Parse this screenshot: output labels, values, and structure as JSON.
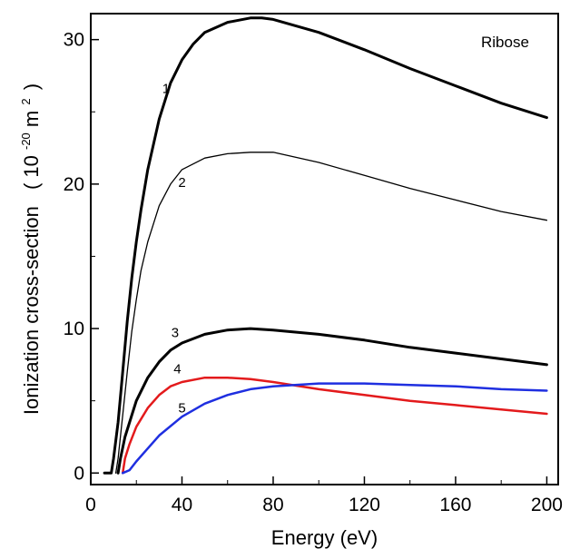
{
  "chart_data": {
    "type": "line",
    "title": "",
    "annotation": "Ribose",
    "xlabel": "Energy (eV)",
    "ylabel": "Ionization cross-section",
    "ylabel_unit_prefix": "( 10",
    "ylabel_unit_exp": "-20",
    "ylabel_unit_base": " m",
    "ylabel_unit_sup": "2",
    "ylabel_unit_suffix": ")",
    "xlim": [
      0,
      205
    ],
    "ylim": [
      -0.8,
      31.8
    ],
    "xticks": [
      0,
      40,
      80,
      120,
      160,
      200
    ],
    "yticks": [
      0,
      10,
      20,
      30
    ],
    "xtick_labels": [
      "0",
      "40",
      "80",
      "120",
      "160",
      "200"
    ],
    "ytick_labels": [
      "0",
      "10",
      "20",
      "30"
    ],
    "grid": false,
    "series": [
      {
        "name": "1",
        "color": "#000000",
        "width": 3,
        "label_pos": [
          33,
          26.3
        ],
        "points": [
          [
            6,
            0
          ],
          [
            9,
            0
          ],
          [
            10,
            1
          ],
          [
            12,
            3.5
          ],
          [
            14,
            7
          ],
          [
            16,
            10.5
          ],
          [
            18,
            13.5
          ],
          [
            20,
            16
          ],
          [
            22,
            18.2
          ],
          [
            25,
            21
          ],
          [
            30,
            24.5
          ],
          [
            35,
            27
          ],
          [
            40,
            28.6
          ],
          [
            45,
            29.7
          ],
          [
            50,
            30.5
          ],
          [
            60,
            31.2
          ],
          [
            70,
            31.5
          ],
          [
            75,
            31.5
          ],
          [
            80,
            31.4
          ],
          [
            100,
            30.5
          ],
          [
            120,
            29.3
          ],
          [
            140,
            28
          ],
          [
            160,
            26.8
          ],
          [
            180,
            25.6
          ],
          [
            200,
            24.6
          ]
        ]
      },
      {
        "name": "2",
        "color": "#000000",
        "width": 1.3,
        "label_pos": [
          40,
          19.8
        ],
        "points": [
          [
            11,
            0
          ],
          [
            12,
            1
          ],
          [
            14,
            4
          ],
          [
            16,
            7
          ],
          [
            18,
            9.8
          ],
          [
            20,
            12
          ],
          [
            22,
            14
          ],
          [
            25,
            16
          ],
          [
            30,
            18.5
          ],
          [
            35,
            20
          ],
          [
            40,
            21
          ],
          [
            50,
            21.8
          ],
          [
            60,
            22.1
          ],
          [
            70,
            22.2
          ],
          [
            80,
            22.2
          ],
          [
            100,
            21.5
          ],
          [
            120,
            20.6
          ],
          [
            140,
            19.7
          ],
          [
            160,
            18.9
          ],
          [
            180,
            18.1
          ],
          [
            200,
            17.5
          ]
        ]
      },
      {
        "name": "3",
        "color": "#000000",
        "width": 3,
        "label_pos": [
          37,
          9.4
        ],
        "points": [
          [
            12,
            0
          ],
          [
            13,
            1
          ],
          [
            15,
            2.5
          ],
          [
            18,
            4
          ],
          [
            20,
            5
          ],
          [
            25,
            6.6
          ],
          [
            30,
            7.7
          ],
          [
            35,
            8.5
          ],
          [
            40,
            9
          ],
          [
            50,
            9.6
          ],
          [
            60,
            9.9
          ],
          [
            70,
            10
          ],
          [
            80,
            9.9
          ],
          [
            100,
            9.6
          ],
          [
            120,
            9.2
          ],
          [
            140,
            8.7
          ],
          [
            160,
            8.3
          ],
          [
            180,
            7.9
          ],
          [
            200,
            7.5
          ]
        ]
      },
      {
        "name": "4",
        "color": "#e31a1c",
        "width": 2.5,
        "label_pos": [
          38,
          6.9
        ],
        "points": [
          [
            14,
            0
          ],
          [
            15,
            1
          ],
          [
            17,
            2
          ],
          [
            20,
            3.2
          ],
          [
            25,
            4.5
          ],
          [
            30,
            5.4
          ],
          [
            35,
            6
          ],
          [
            40,
            6.3
          ],
          [
            50,
            6.6
          ],
          [
            60,
            6.6
          ],
          [
            70,
            6.5
          ],
          [
            80,
            6.3
          ],
          [
            100,
            5.8
          ],
          [
            120,
            5.4
          ],
          [
            140,
            5
          ],
          [
            160,
            4.7
          ],
          [
            180,
            4.4
          ],
          [
            200,
            4.1
          ]
        ]
      },
      {
        "name": "5",
        "color": "#1f2fe0",
        "width": 2.5,
        "label_pos": [
          40,
          4.2
        ],
        "points": [
          [
            14,
            0
          ],
          [
            17,
            0.2
          ],
          [
            20,
            0.8
          ],
          [
            25,
            1.7
          ],
          [
            30,
            2.6
          ],
          [
            40,
            3.9
          ],
          [
            50,
            4.8
          ],
          [
            60,
            5.4
          ],
          [
            70,
            5.8
          ],
          [
            80,
            6
          ],
          [
            100,
            6.2
          ],
          [
            120,
            6.2
          ],
          [
            140,
            6.1
          ],
          [
            160,
            6
          ],
          [
            180,
            5.8
          ],
          [
            200,
            5.7
          ]
        ]
      }
    ]
  }
}
